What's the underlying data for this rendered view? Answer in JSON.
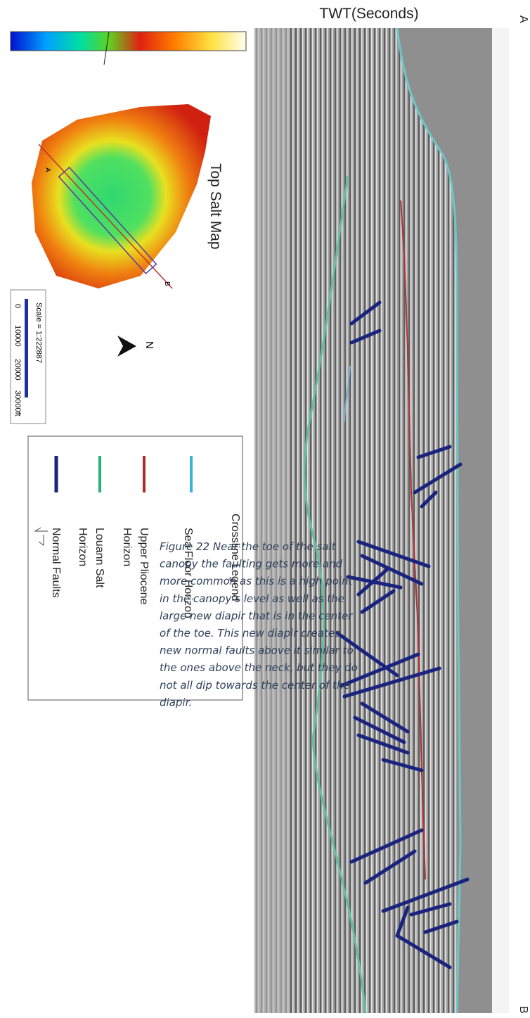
{
  "header": {
    "axis_label": "TWT(Seconds)",
    "end_a": "A",
    "end_b": "B"
  },
  "map": {
    "title": "Top Salt Map",
    "north": "N",
    "line_a": "A",
    "line_b": "B",
    "scale": "Scale = 1:222887",
    "scale_ticks": [
      "0",
      "10000",
      "20000",
      "30000ft"
    ]
  },
  "legend": {
    "title": "Crossline Legend",
    "items": [
      {
        "lines": [
          "Sea Floor Horizon"
        ]
      },
      {
        "lines": [
          "Upper Pliocene",
          "Horizon"
        ]
      },
      {
        "lines": [
          "Louann Salt",
          "Horizon"
        ]
      },
      {
        "lines": [
          "Normal Faults"
        ]
      }
    ]
  },
  "caption": [
    "Figure 22 Near the toe of the salt",
    "canopy the faulting gets more and",
    "more common as this is a high point",
    "in the canopy’s  level as well as the",
    "large new diapir that is in the center",
    "of the toe. This new diapir creates",
    "new normal faults above it similar to",
    "the ones above the neck, but they do",
    "not all dip towards the center of the",
    "diapir."
  ]
}
